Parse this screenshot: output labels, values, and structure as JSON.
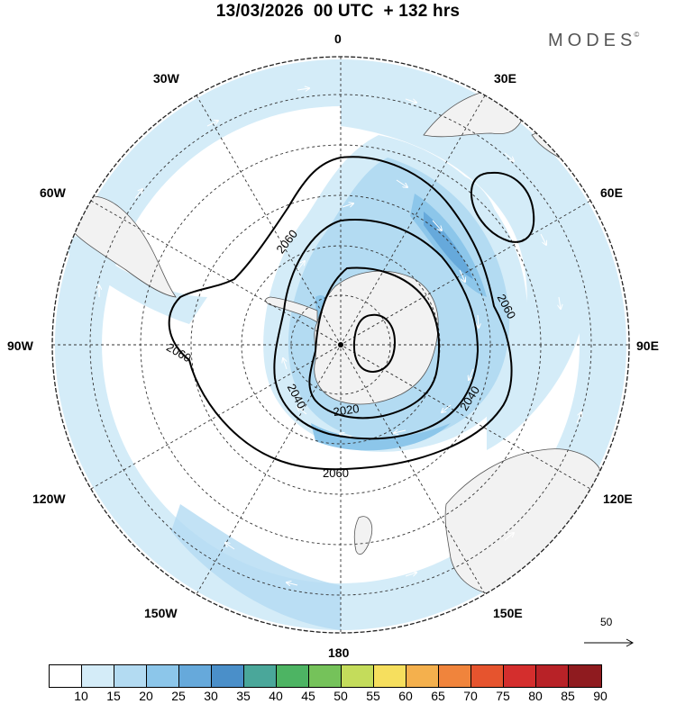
{
  "title": "13/03/2026  00 UTC  + 132 hrs",
  "brand": {
    "name": "MODES",
    "mark": "©"
  },
  "map": {
    "projection": "polar-stereographic-south",
    "longitude_labels": {
      "0": "0",
      "30E": "30E",
      "60E": "60E",
      "90E": "90E",
      "120E": "120E",
      "150E": "150E",
      "180": "180",
      "150W": "150W",
      "120W": "120W",
      "90W": "90W",
      "60W": "60W",
      "30W": "30W"
    },
    "contour_labels": {
      "a": "2060",
      "b": "2060",
      "c": "2060",
      "d": "2040",
      "e": "2040",
      "f": "2020",
      "g": "2060"
    },
    "colors": {
      "land": "#f2f2f2",
      "coast": "#555555",
      "ocean": "#ffffff",
      "wind_light": "#d4ecf8",
      "wind_mid": "#b3dbf2",
      "wind_strong": "#8cc6ea",
      "contour": "#000000",
      "grid": "#333333"
    }
  },
  "wind_reference": {
    "value": "50",
    "arrow_icon": "right-arrow-icon"
  },
  "colorbar": {
    "colors": [
      "#ffffff",
      "#d4ecf8",
      "#b3dbf2",
      "#8cc6ea",
      "#66a9db",
      "#4a8fc9",
      "#4aa79a",
      "#4db463",
      "#75c25a",
      "#c4dc5b",
      "#f6df5e",
      "#f4b04d",
      "#f0843c",
      "#e6542e",
      "#d42e2d",
      "#b82227",
      "#8f1b1f"
    ],
    "ticks": [
      "10",
      "15",
      "20",
      "25",
      "30",
      "35",
      "40",
      "45",
      "50",
      "55",
      "60",
      "65",
      "70",
      "75",
      "80",
      "85",
      "90"
    ]
  }
}
